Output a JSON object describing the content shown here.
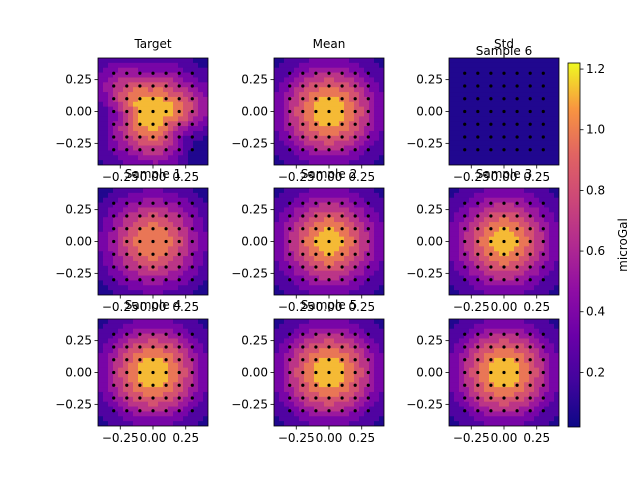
{
  "chart_data": {
    "type": "heatmap",
    "subplot_kind": "filled-contour",
    "colormap": "plasma",
    "panels": [
      {
        "title": "Target",
        "peak_value": 1.2,
        "shape": "irregular"
      },
      {
        "title": "Mean",
        "peak_value": 1.2,
        "shape": "radial"
      },
      {
        "title": "Std",
        "overlay_title": "Sample 6",
        "peak_value": 0.05,
        "shape": "flat"
      },
      {
        "title": "Sample 1",
        "peak_value": 1.05,
        "shape": "radial"
      },
      {
        "title": "Sample 2",
        "peak_value": 1.15,
        "shape": "radial"
      },
      {
        "title": "Sample 3",
        "peak_value": 1.15,
        "shape": "radial"
      },
      {
        "title": "Sample 4",
        "peak_value": 1.2,
        "shape": "radial"
      },
      {
        "title": "Sample 5",
        "peak_value": 1.2,
        "shape": "radial"
      },
      {
        "title": "",
        "peak_value": 1.2,
        "shape": "radial"
      }
    ],
    "xticks": [
      "−0.25",
      "0.00",
      "0.25"
    ],
    "yticks": [
      "0.25",
      "0.00",
      "−0.25"
    ],
    "xlim": [
      -0.42,
      0.42
    ],
    "ylim": [
      -0.42,
      0.42
    ],
    "sample_grid": [
      -0.3,
      -0.2,
      -0.1,
      0.0,
      0.1,
      0.2,
      0.3
    ],
    "colorbar": {
      "label": "microGal",
      "ticks": [
        "0.2",
        "0.4",
        "0.6",
        "0.8",
        "1.0",
        "1.2"
      ],
      "tick_values": [
        0.2,
        0.4,
        0.6,
        0.8,
        1.0,
        1.2
      ],
      "vmin": 0.02,
      "vmax": 1.22
    },
    "levels": [
      0.0,
      0.15,
      0.3,
      0.45,
      0.6,
      0.75,
      0.9,
      1.05,
      1.2
    ],
    "grid": false
  }
}
